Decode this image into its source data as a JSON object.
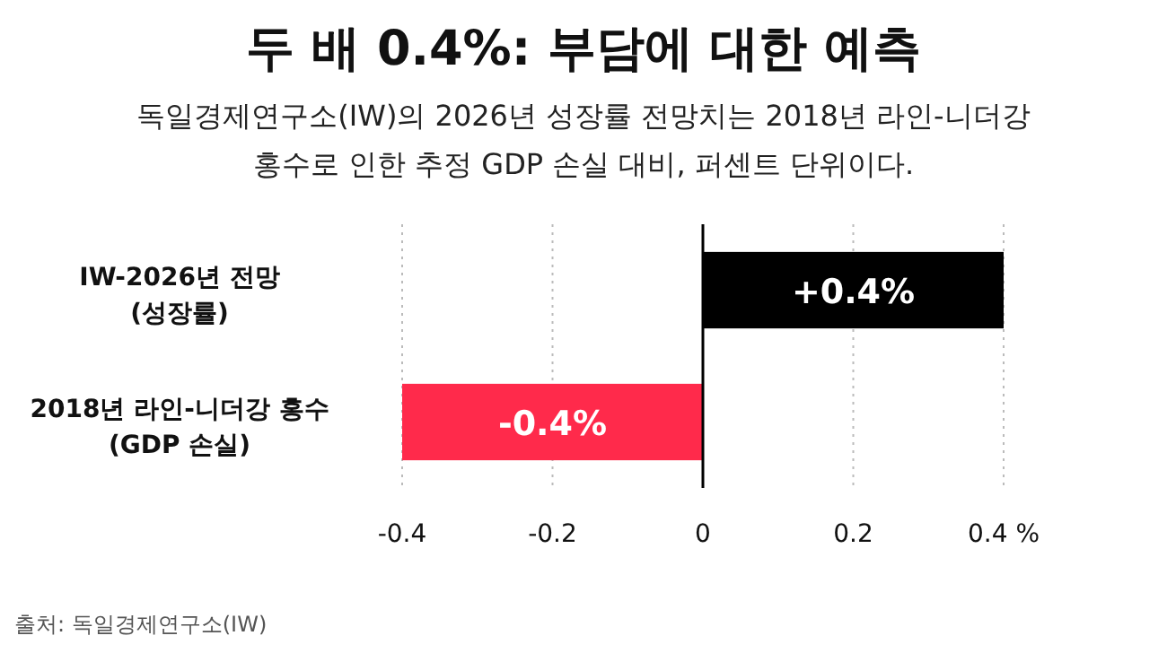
{
  "chart_data": {
    "type": "bar",
    "orientation": "horizontal",
    "title": "두 배 0.4%: 부담에 대한 예측",
    "subtitle": "독일경제연구소(IW)의 2026년 성장률 전망치는 2018년 라인-니더강\n홍수로 인한 추정 GDP 손실 대비, 퍼센트 단위이다.",
    "categories": [
      "IW-2026년 전망\n(성장률)",
      "2018년 라인-니더강 홍수\n(GDP 손실)"
    ],
    "values": [
      0.4,
      -0.4
    ],
    "colors": [
      "#000000",
      "#ff2a4b"
    ],
    "value_labels": [
      "+0.4%",
      "-0.4%"
    ],
    "xlim": [
      -0.4,
      0.4
    ],
    "xticks": [
      -0.4,
      -0.2,
      0,
      0.2,
      {
        "value": 0.4,
        "label": "0.4 %"
      }
    ],
    "grid": "x",
    "annotations": [
      "출처: 독일경제연구소(IW)"
    ]
  }
}
